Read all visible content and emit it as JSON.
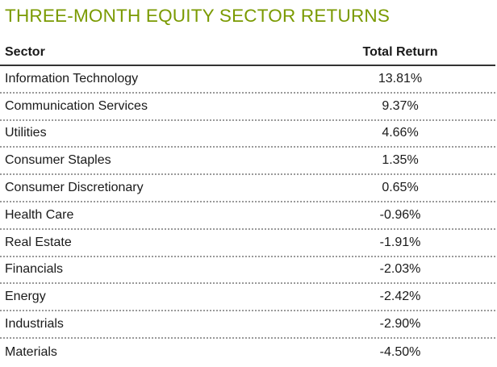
{
  "chart_data": {
    "type": "table",
    "title": "THREE-MONTH EQUITY SECTOR RETURNS",
    "columns": [
      "Sector",
      "Total Return"
    ],
    "rows": [
      {
        "sector": "Information Technology",
        "total_return": "13.81%"
      },
      {
        "sector": "Communication Services",
        "total_return": "9.37%"
      },
      {
        "sector": "Utilities",
        "total_return": "4.66%"
      },
      {
        "sector": "Consumer Staples",
        "total_return": "1.35%"
      },
      {
        "sector": "Consumer Discretionary",
        "total_return": "0.65%"
      },
      {
        "sector": "Health Care",
        "total_return": "-0.96%"
      },
      {
        "sector": "Real Estate",
        "total_return": "-1.91%"
      },
      {
        "sector": "Financials",
        "total_return": "-2.03%"
      },
      {
        "sector": "Energy",
        "total_return": "-2.42%"
      },
      {
        "sector": "Industrials",
        "total_return": "-2.90%"
      },
      {
        "sector": "Materials",
        "total_return": "-4.50%"
      }
    ]
  },
  "colors": {
    "title": "#7a9a01",
    "header_rule": "#333333",
    "row_rule": "#9a9a9a"
  }
}
